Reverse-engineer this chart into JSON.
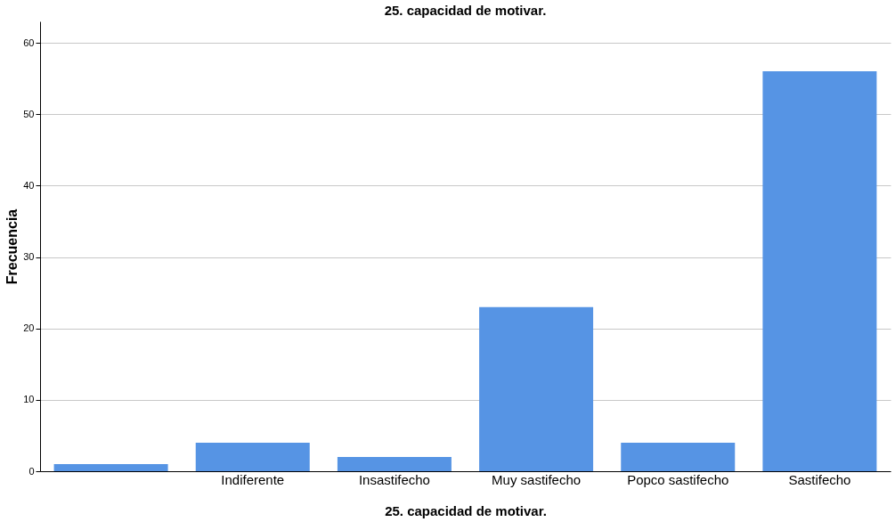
{
  "chart_data": {
    "type": "bar",
    "title": "25. capacidad de motivar.",
    "xlabel": "25. capacidad de motivar.",
    "ylabel": "Frecuencia",
    "categories": [
      null,
      "Indiferente",
      "Insastifecho",
      "Muy sastifecho",
      "Popco sastifecho",
      "Sastifecho"
    ],
    "values": [
      1,
      4,
      2,
      23,
      4,
      56
    ],
    "color": "#5694e4",
    "ylim": [
      0,
      63
    ],
    "yticks": [
      0,
      10,
      20,
      30,
      40,
      50,
      60
    ],
    "grid": "y"
  }
}
